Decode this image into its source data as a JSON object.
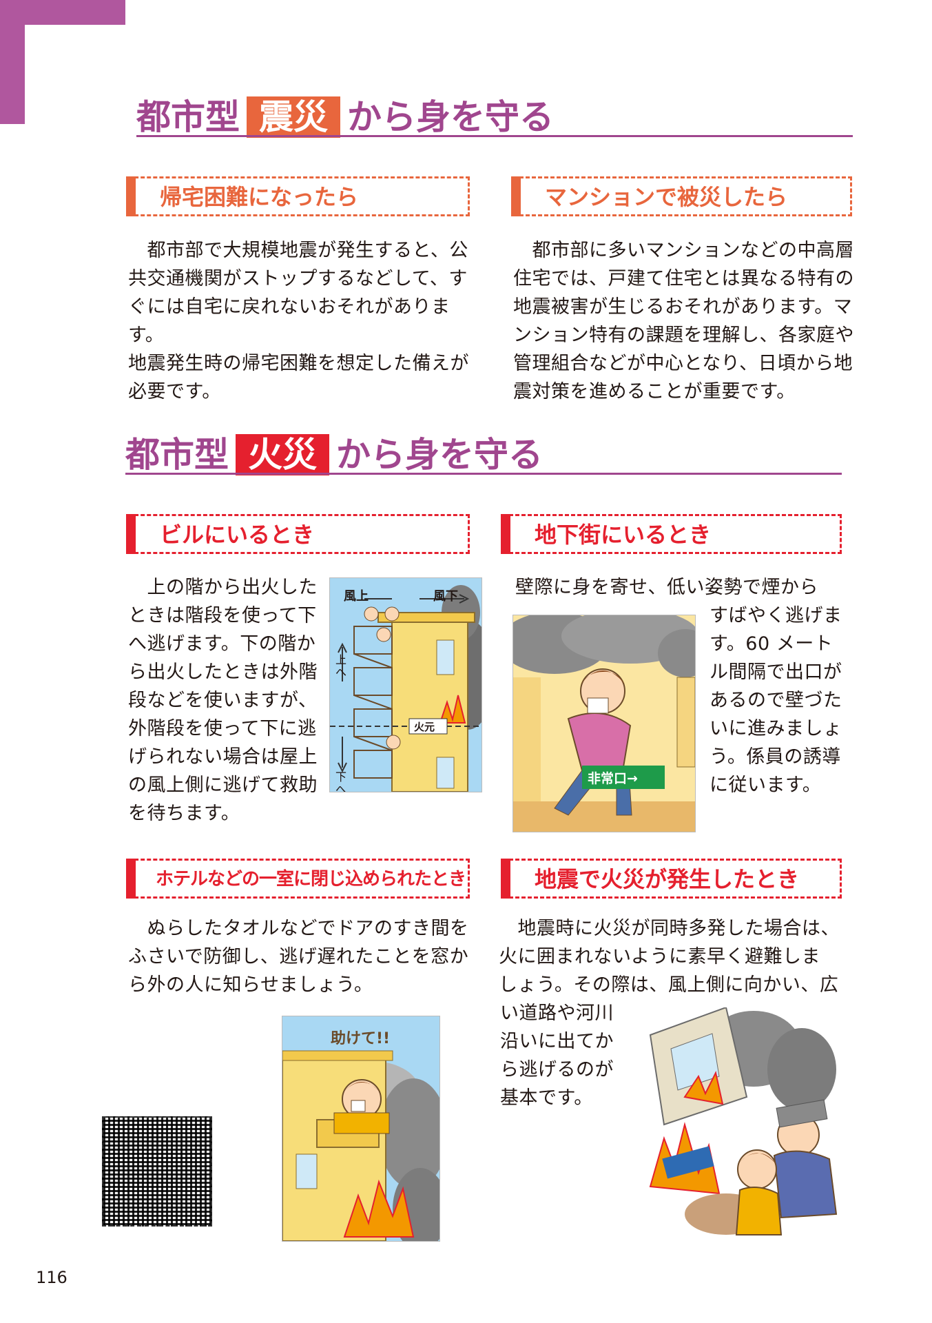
{
  "sections": {
    "quake": {
      "pre": "都市型",
      "box": "震災",
      "post": "から身を守る",
      "box_color": "#e8663d"
    },
    "fire": {
      "pre": "都市型",
      "box": "火災",
      "post": "から身を守る",
      "box_color": "#e5202e"
    }
  },
  "quake_blocks": {
    "commute": {
      "heading": "帰宅困難になったら",
      "lines": [
        "　都市部で大規模地震が発生すると、公",
        "共交通機関がストップするなどして、す",
        "ぐには自宅に戻れないおそれがあります。",
        "地震発生時の帰宅困難を想定した備えが",
        "必要です。"
      ]
    },
    "mansion": {
      "heading": "マンションで被災したら",
      "lines": [
        "　都市部に多いマンションなどの中高層",
        "住宅では、戸建て住宅とは異なる特有の",
        "地震被害が生じるおそれがあります。マ",
        "ンション特有の課題を理解し、各家庭や",
        "管理組合などが中心となり、日頃から地",
        "震対策を進めることが重要です。"
      ]
    }
  },
  "fire_blocks": {
    "building": {
      "heading": "ビルにいるとき",
      "lines": [
        "　上の階から出火した",
        "ときは階段を使って下",
        "へ逃げます。下の階か",
        "ら出火したときは外階",
        "段などを使いますが、",
        "外階段を使って下に逃",
        "げられない場合は屋上",
        "の風上側に逃げて救助",
        "を待ちます。"
      ],
      "illus_labels": {
        "windward": "風上",
        "leeward": "風下",
        "up": "上へ",
        "down": "下へ",
        "fire_origin": "火元"
      }
    },
    "underground": {
      "heading": "地下街にいるとき",
      "lines_top": [
        "壁際に身を寄せ、低い姿勢で煙から"
      ],
      "lines_side": [
        "すばやく逃げま",
        "す。60 メート",
        "ル間隔で出口が",
        "あるので壁づた",
        "いに進みましょ",
        "う。係員の誘導",
        "に従います。"
      ],
      "illus_labels": {
        "exit_sign": "非常口→"
      }
    },
    "hotel": {
      "heading": "ホテルなどの一室に閉じ込められたとき",
      "lines": [
        "　ぬらしたタオルなどでドアのすき間を",
        "ふさいで防御し、逃げ遅れたことを窓か",
        "ら外の人に知らせましょう。"
      ],
      "illus_labels": {
        "help": "助けて!!"
      }
    },
    "quake_fire": {
      "heading": "地震で火災が発生したとき",
      "lines_top": [
        "　地震時に火災が同時多発した場合は、",
        "火に囲まれないように素早く避難しま",
        "しょう。その際は、風上側に向かい、広"
      ],
      "lines_side": [
        "い道路や河川",
        "沿いに出てか",
        "ら逃げるのが",
        "基本です。"
      ]
    }
  },
  "page_number": "116",
  "colors": {
    "purple": "#a0468e",
    "orange": "#e8663d",
    "red": "#e5202e"
  }
}
